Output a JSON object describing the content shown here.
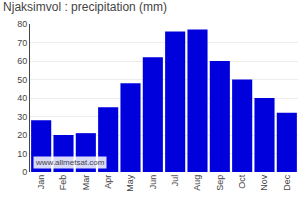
{
  "chart_data": {
    "type": "bar",
    "title": "Njaksimvol : precipitation (mm)",
    "categories": [
      "Jan",
      "Feb",
      "Mar",
      "Apr",
      "May",
      "Jun",
      "Jul",
      "Aug",
      "Sep",
      "Oct",
      "Nov",
      "Dec"
    ],
    "values": [
      28,
      20,
      21,
      35,
      48,
      62,
      76,
      77,
      60,
      50,
      40,
      32
    ],
    "color": "#0000dd",
    "ylim": [
      0,
      80
    ],
    "yticks": [
      0,
      10,
      20,
      30,
      40,
      50,
      60,
      70,
      80
    ],
    "grid": true,
    "annotations": [
      "www.allmetsat.com"
    ]
  }
}
